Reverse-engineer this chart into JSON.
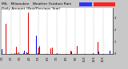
{
  "title": "MIL   Milwaukee   Weather Outdoor Rain",
  "title2": "Daily Amount (Past/Previous Year)",
  "background_color": "#c8c8c8",
  "plot_bg_color": "#ffffff",
  "bar_color_current": "#0000dd",
  "bar_color_prev": "#dd0000",
  "legend_blue": "#3333ff",
  "legend_red": "#ff2222",
  "n_points": 365,
  "y_max": 3.8,
  "y_min": 0.0,
  "grid_color": "#999999",
  "title_fontsize": 3.2,
  "tick_fontsize": 2.5,
  "figwidth": 1.6,
  "figheight": 0.87,
  "dpi": 100
}
